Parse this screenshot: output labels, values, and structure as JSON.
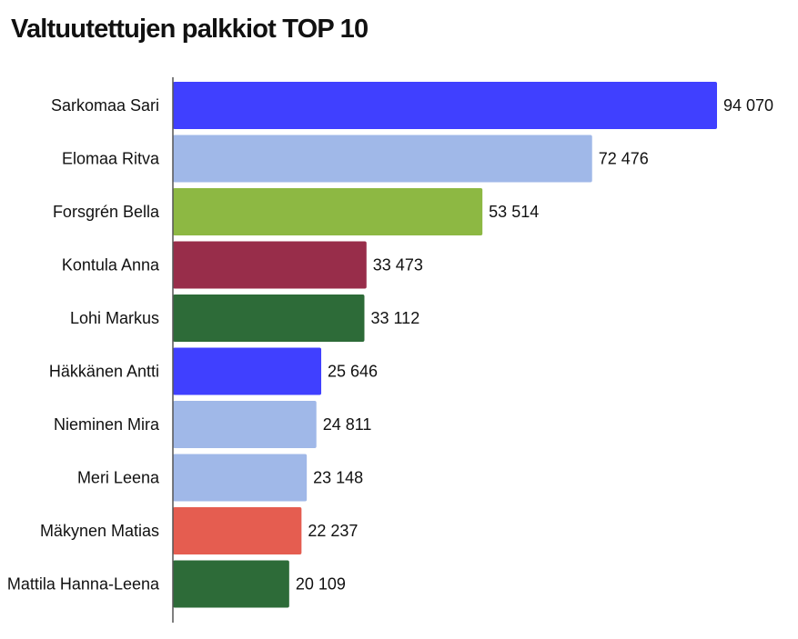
{
  "chart_data": {
    "type": "bar",
    "orientation": "horizontal",
    "title": "Valtuutettujen palkkiot TOP 10",
    "xlabel": "",
    "ylabel": "",
    "grid": false,
    "categories": [
      "Sarkomaa Sari",
      "Elomaa Ritva",
      "Forsgrén Bella",
      "Kontula Anna",
      "Lohi Markus",
      "Häkkänen Antti",
      "Nieminen Mira",
      "Meri Leena",
      "Mäkynen Matias",
      "Mattila Hanna-Leena"
    ],
    "values": [
      94070,
      72476,
      53514,
      33473,
      33112,
      25646,
      24811,
      23148,
      22237,
      20109
    ],
    "value_labels": [
      "94 070",
      "72 476",
      "53 514",
      "33 473",
      "33 112",
      "25 646",
      "24 811",
      "23 148",
      "22 237",
      "20 109"
    ],
    "colors": [
      "#4040FF",
      "#A0B8E8",
      "#8DB843",
      "#982D4A",
      "#2D6B38",
      "#4040FF",
      "#A0B8E8",
      "#A0B8E8",
      "#E55D50",
      "#2D6B38"
    ],
    "xlim": [
      0,
      94070
    ]
  }
}
